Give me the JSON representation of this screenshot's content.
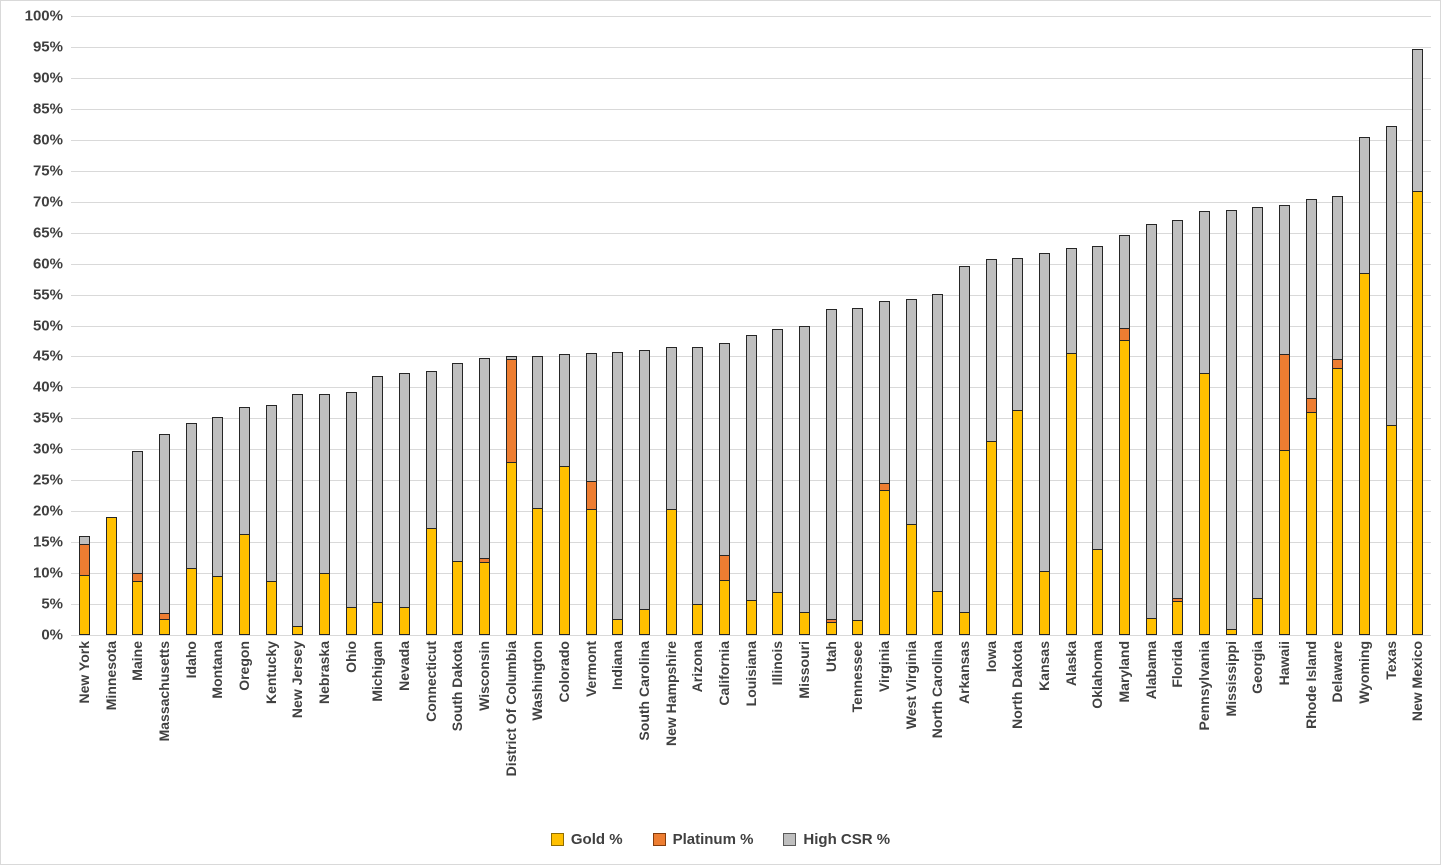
{
  "y_axis": {
    "ticks": [
      "100%",
      "95%",
      "90%",
      "85%",
      "80%",
      "75%",
      "70%",
      "65%",
      "60%",
      "55%",
      "50%",
      "45%",
      "40%",
      "35%",
      "30%",
      "25%",
      "20%",
      "15%",
      "10%",
      "5%",
      "0%"
    ],
    "min": 0,
    "max": 100,
    "step": 5
  },
  "legend": [
    {
      "label": "Gold %",
      "color": "#FFC000",
      "border": "#8f6c00"
    },
    {
      "label": "Platinum %",
      "color": "#ED7D31",
      "border": "#843c0c"
    },
    {
      "label": "High CSR %",
      "color": "#BFBFBF",
      "border": "#595959"
    }
  ],
  "colors": {
    "gold": "#FFC000",
    "platinum": "#ED7D31",
    "high_csr": "#BFBFBF",
    "gridline": "#D9D9D9",
    "segment_border": "#262626",
    "axis_text": "#404040"
  },
  "chart_data": {
    "type": "bar",
    "stacked": true,
    "title": "",
    "xlabel": "",
    "ylabel": "",
    "ylim": [
      0,
      100
    ],
    "grid": true,
    "legend_position": "bottom",
    "categories": [
      "New York",
      "Minnesota",
      "Maine",
      "Massachusetts",
      "Idaho",
      "Montana",
      "Oregon",
      "Kentucky",
      "New Jersey",
      "Nebraska",
      "Ohio",
      "Michigan",
      "Nevada",
      "Connecticut",
      "South Dakota",
      "Wisconsin",
      "District Of Columbia",
      "Washington",
      "Colorado",
      "Vermont",
      "Indiana",
      "South Carolina",
      "New Hampshire",
      "Arizona",
      "California",
      "Louisiana",
      "Illinois",
      "Missouri",
      "Utah",
      "Tennessee",
      "Virginia",
      "West Virginia",
      "North Carolina",
      "Arkansas",
      "Iowa",
      "North Dakota",
      "Kansas",
      "Alaska",
      "Oklahoma",
      "Maryland",
      "Alabama",
      "Florida",
      "Pennsylvania",
      "Mississippi",
      "Georgia",
      "Hawaii",
      "Rhode Island",
      "Delaware",
      "Wyoming",
      "Texas",
      "New Mexico"
    ],
    "series": [
      {
        "name": "Gold %",
        "color": "#FFC000",
        "values": [
          9.5,
          19.0,
          8.5,
          2.4,
          10.7,
          9.4,
          16.2,
          8.6,
          1.3,
          9.8,
          4.4,
          5.2,
          4.3,
          17.2,
          11.8,
          11.7,
          27.8,
          20.4,
          27.2,
          20.2,
          2.5,
          4.0,
          20.2,
          4.9,
          8.7,
          5.5,
          6.8,
          3.6,
          2.0,
          2.2,
          23.2,
          17.7,
          7.0,
          3.5,
          31.2,
          36.2,
          10.2,
          45.4,
          13.8,
          47.5,
          2.6,
          5.4,
          42.1,
          0.8,
          5.9,
          29.7,
          35.9,
          42.9,
          58.3,
          33.8,
          71.6
        ]
      },
      {
        "name": "Platinum %",
        "color": "#ED7D31",
        "values": [
          5.0,
          0,
          1.3,
          1.0,
          0,
          0,
          0,
          0,
          0,
          0,
          0,
          0,
          0,
          0,
          0,
          0.6,
          16.7,
          0,
          0,
          4.5,
          0,
          0,
          0,
          0,
          4.1,
          0,
          0,
          0,
          0.5,
          0,
          1.2,
          0,
          0,
          0,
          0,
          0,
          0,
          0,
          0,
          1.9,
          0,
          0.5,
          0,
          0,
          0,
          15.6,
          2.3,
          1.5,
          0,
          0,
          0
        ]
      },
      {
        "name": "High CSR %",
        "color": "#BFBFBF",
        "values": [
          1.5,
          0,
          19.9,
          29.0,
          23.6,
          25.8,
          20.6,
          28.6,
          37.7,
          29.2,
          34.8,
          36.6,
          38.1,
          25.4,
          32.2,
          32.4,
          0.5,
          24.7,
          18.2,
          20.9,
          43.3,
          42.0,
          26.3,
          41.7,
          34.4,
          43.0,
          42.6,
          46.3,
          50.1,
          50.7,
          29.6,
          36.6,
          48.1,
          56.1,
          29.5,
          24.7,
          51.5,
          17.2,
          49.0,
          15.2,
          63.8,
          61.1,
          26.4,
          67.9,
          63.3,
          24.2,
          32.3,
          26.5,
          22.2,
          48.4,
          23.0
        ]
      }
    ],
    "totals": [
      16.0,
      19.0,
      29.7,
      32.4,
      34.3,
      35.2,
      36.8,
      37.2,
      39.0,
      39.0,
      39.2,
      41.8,
      42.4,
      42.6,
      44.0,
      44.7,
      45.0,
      45.1,
      45.4,
      45.6,
      45.8,
      46.0,
      46.5,
      46.6,
      47.2,
      48.5,
      49.4,
      49.9,
      52.6,
      52.9,
      54.0,
      54.3,
      55.1,
      59.6,
      60.7,
      60.9,
      61.7,
      62.6,
      62.8,
      64.6,
      66.4,
      67.0,
      68.5,
      68.7,
      69.2,
      69.5,
      70.5,
      70.9,
      80.5,
      82.2,
      94.6
    ]
  }
}
